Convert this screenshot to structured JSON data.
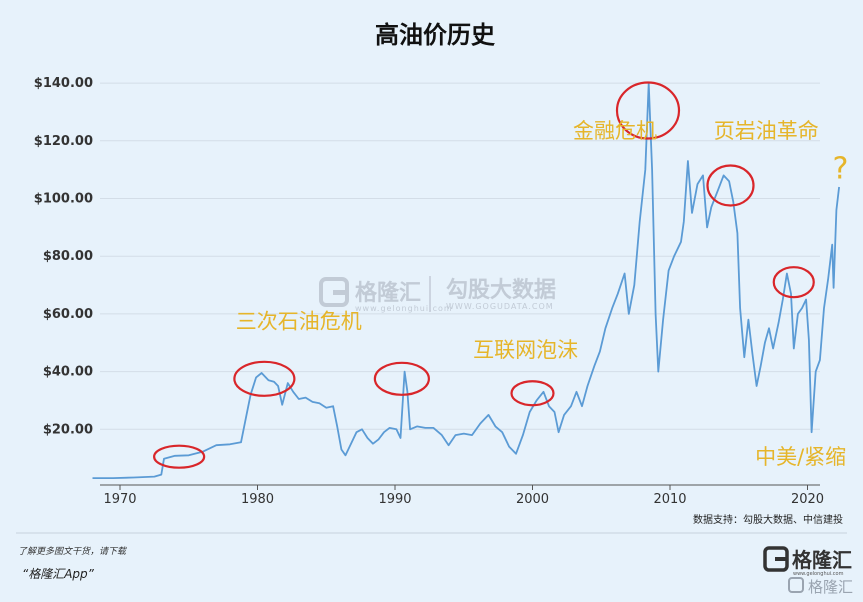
{
  "chart_data": {
    "type": "line",
    "title": "高油价历史",
    "xlabel": "",
    "ylabel": "",
    "xlim": [
      1968,
      2022
    ],
    "ylim": [
      0,
      150
    ],
    "grid": "horizontal",
    "yticks": [
      {
        "value": 20,
        "label": "$20.00"
      },
      {
        "value": 40,
        "label": "$40.00"
      },
      {
        "value": 60,
        "label": "$60.00"
      },
      {
        "value": 80,
        "label": "$80.00"
      },
      {
        "value": 100,
        "label": "$100.00"
      },
      {
        "value": 120,
        "label": "$120.00"
      },
      {
        "value": 140,
        "label": "$140.00"
      }
    ],
    "xticks": [
      {
        "value": 1970,
        "label": "1970"
      },
      {
        "value": 1980,
        "label": "1980"
      },
      {
        "value": 1990,
        "label": "1990"
      },
      {
        "value": 2000,
        "label": "2000"
      },
      {
        "value": 2010,
        "label": "2010"
      },
      {
        "value": 2020,
        "label": "2020"
      }
    ],
    "series": [
      {
        "color": "#5b9bd5",
        "points": [
          [
            1968.0,
            3.1
          ],
          [
            1969.5,
            3.1
          ],
          [
            1971.0,
            3.3
          ],
          [
            1972.5,
            3.6
          ],
          [
            1973.0,
            4.3
          ],
          [
            1973.2,
            9.8
          ],
          [
            1974.0,
            10.8
          ],
          [
            1975.0,
            11.0
          ],
          [
            1976.0,
            12.2
          ],
          [
            1977.0,
            14.5
          ],
          [
            1978.0,
            14.8
          ],
          [
            1978.8,
            15.5
          ],
          [
            1979.2,
            25.0
          ],
          [
            1979.5,
            32.0
          ],
          [
            1979.9,
            38.0
          ],
          [
            1980.3,
            39.5
          ],
          [
            1980.8,
            37.0
          ],
          [
            1981.2,
            36.5
          ],
          [
            1981.5,
            35.0
          ],
          [
            1981.8,
            28.5
          ],
          [
            1982.2,
            36.0
          ],
          [
            1982.6,
            33.0
          ],
          [
            1983.0,
            30.5
          ],
          [
            1983.5,
            31.0
          ],
          [
            1984.0,
            29.5
          ],
          [
            1984.5,
            29.0
          ],
          [
            1985.0,
            27.5
          ],
          [
            1985.5,
            28.0
          ],
          [
            1985.8,
            21.0
          ],
          [
            1986.1,
            13.0
          ],
          [
            1986.4,
            11.0
          ],
          [
            1986.8,
            15.0
          ],
          [
            1987.2,
            19.0
          ],
          [
            1987.6,
            20.0
          ],
          [
            1988.0,
            17.0
          ],
          [
            1988.4,
            15.0
          ],
          [
            1988.8,
            16.5
          ],
          [
            1989.2,
            19.0
          ],
          [
            1989.6,
            20.5
          ],
          [
            1990.1,
            20.0
          ],
          [
            1990.4,
            17.0
          ],
          [
            1990.7,
            40.0
          ],
          [
            1990.9,
            33.0
          ],
          [
            1991.1,
            20.0
          ],
          [
            1991.6,
            21.0
          ],
          [
            1992.2,
            20.5
          ],
          [
            1992.8,
            20.5
          ],
          [
            1993.4,
            18.0
          ],
          [
            1993.9,
            14.5
          ],
          [
            1994.4,
            18.0
          ],
          [
            1995.0,
            18.5
          ],
          [
            1995.6,
            18.0
          ],
          [
            1996.2,
            22.0
          ],
          [
            1996.8,
            25.0
          ],
          [
            1997.3,
            21.0
          ],
          [
            1997.8,
            19.0
          ],
          [
            1998.3,
            14.0
          ],
          [
            1998.8,
            11.5
          ],
          [
            1999.3,
            18.0
          ],
          [
            1999.8,
            26.0
          ],
          [
            2000.3,
            30.0
          ],
          [
            2000.8,
            33.0
          ],
          [
            2001.2,
            28.0
          ],
          [
            2001.6,
            26.0
          ],
          [
            2001.9,
            19.0
          ],
          [
            2002.3,
            25.0
          ],
          [
            2002.8,
            28.0
          ],
          [
            2003.2,
            33.0
          ],
          [
            2003.6,
            28.0
          ],
          [
            2004.0,
            35.0
          ],
          [
            2004.5,
            42.0
          ],
          [
            2004.9,
            47.0
          ],
          [
            2005.3,
            55.0
          ],
          [
            2005.8,
            62.0
          ],
          [
            2006.2,
            67.0
          ],
          [
            2006.7,
            74.0
          ],
          [
            2007.0,
            60.0
          ],
          [
            2007.4,
            70.0
          ],
          [
            2007.8,
            92.0
          ],
          [
            2008.2,
            110.0
          ],
          [
            2008.45,
            140.0
          ],
          [
            2008.7,
            110.0
          ],
          [
            2008.95,
            60.0
          ],
          [
            2009.15,
            40.0
          ],
          [
            2009.5,
            58.0
          ],
          [
            2009.9,
            75.0
          ],
          [
            2010.3,
            80.0
          ],
          [
            2010.8,
            85.0
          ],
          [
            2011.0,
            92.0
          ],
          [
            2011.3,
            113.0
          ],
          [
            2011.6,
            95.0
          ],
          [
            2012.0,
            105.0
          ],
          [
            2012.4,
            108.0
          ],
          [
            2012.7,
            90.0
          ],
          [
            2013.0,
            97.0
          ],
          [
            2013.5,
            103.0
          ],
          [
            2013.9,
            108.0
          ],
          [
            2014.3,
            106.0
          ],
          [
            2014.6,
            99.0
          ],
          [
            2014.9,
            88.0
          ],
          [
            2015.1,
            62.0
          ],
          [
            2015.4,
            45.0
          ],
          [
            2015.7,
            58.0
          ],
          [
            2016.0,
            46.0
          ],
          [
            2016.3,
            35.0
          ],
          [
            2016.6,
            42.0
          ],
          [
            2016.9,
            50.0
          ],
          [
            2017.2,
            55.0
          ],
          [
            2017.5,
            48.0
          ],
          [
            2017.9,
            57.0
          ],
          [
            2018.2,
            65.0
          ],
          [
            2018.5,
            74.0
          ],
          [
            2018.8,
            67.0
          ],
          [
            2019.0,
            48.0
          ],
          [
            2019.3,
            60.0
          ],
          [
            2019.6,
            62.0
          ],
          [
            2019.9,
            65.0
          ],
          [
            2020.1,
            51.0
          ],
          [
            2020.3,
            19.0
          ],
          [
            2020.6,
            40.0
          ],
          [
            2020.9,
            44.0
          ],
          [
            2021.2,
            62.0
          ],
          [
            2021.5,
            72.0
          ],
          [
            2021.8,
            84.0
          ],
          [
            2021.9,
            69.0
          ],
          [
            2022.1,
            96.0
          ],
          [
            2022.3,
            104.0
          ]
        ]
      }
    ],
    "annotations": [
      {
        "text": "三次石油危机",
        "x": 1983.0,
        "y": 55
      },
      {
        "text": "互联网泡沫",
        "x": 1999.5,
        "y": 45
      },
      {
        "text": "金融危机",
        "x": 2006.0,
        "y": 121
      },
      {
        "text": "页岩油革命",
        "x": 2017.0,
        "y": 121
      },
      {
        "text": "中美/紧缩",
        "x": 2019.5,
        "y": 8
      },
      {
        "text": "?",
        "x": 2022.4,
        "y": 107
      }
    ],
    "highlights": [
      {
        "x": 1974.3,
        "y": 10.5
      },
      {
        "x": 1980.5,
        "y": 37.5
      },
      {
        "x": 1990.5,
        "y": 37.5
      },
      {
        "x": 2000.0,
        "y": 32.5
      },
      {
        "x": 2008.4,
        "y": 130.5
      },
      {
        "x": 2014.4,
        "y": 104.5
      },
      {
        "x": 2019.0,
        "y": 71.0
      }
    ],
    "source": "数据支持：勾股大数据、中信建投"
  },
  "watermark": {
    "brand": "格隆汇",
    "brand_sub": "www.gelonghui.com",
    "partner": "勾股大数据",
    "partner_sub": "WWW.GOGUDATA.COM"
  },
  "footer": {
    "prompt": "了解更多图文干货，请下载",
    "app": "“格隆汇App”",
    "logo_text": "格隆汇",
    "logo_sub": "www.gelonghui.com",
    "corner_watermark": "格隆汇"
  }
}
